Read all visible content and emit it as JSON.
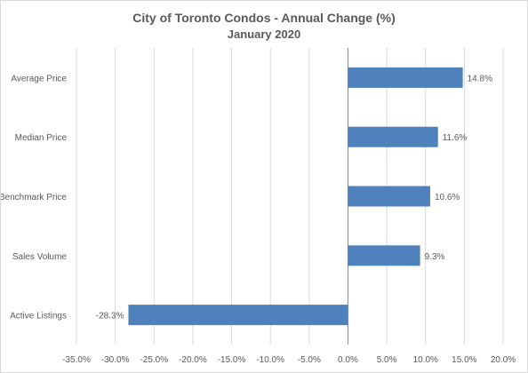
{
  "chart_data": {
    "type": "bar",
    "orientation": "horizontal",
    "title": "City of Toronto Condos - Annual Change (%)",
    "subtitle": "January 2020",
    "categories": [
      "Average Price",
      "Median Price",
      "Benchmark Price",
      "Sales Volume",
      "Active Listings"
    ],
    "values": [
      14.8,
      11.6,
      10.6,
      9.3,
      -28.3
    ],
    "value_labels": [
      "14.8%",
      "11.6%",
      "10.6%",
      "9.3%",
      "-28.3%"
    ],
    "xlim": [
      -35,
      20
    ],
    "x_ticks": [
      -35,
      -30,
      -25,
      -20,
      -15,
      -10,
      -5,
      0,
      5,
      10,
      15,
      20
    ],
    "x_tick_labels": [
      "-35.0%",
      "-30.0%",
      "-25.0%",
      "-20.0%",
      "-15.0%",
      "-10.0%",
      "-5.0%",
      "0.0%",
      "5.0%",
      "10.0%",
      "15.0%",
      "20.0%"
    ],
    "grid": "vertical",
    "legend": "none",
    "colors": {
      "bar": "#4f81bd",
      "grid": "#d9d9d9",
      "text": "#595959",
      "zero_line": "#8c8c8c"
    }
  }
}
